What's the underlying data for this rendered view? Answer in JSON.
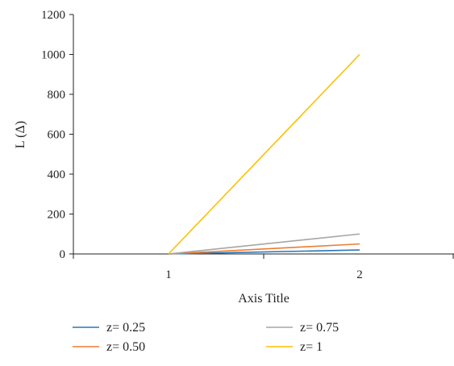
{
  "chart_data": {
    "type": "line",
    "xlabel": "Axis Title",
    "ylabel": "L (Δ)",
    "categories": [
      "1",
      "2"
    ],
    "ylim": [
      0,
      1200
    ],
    "yticks": [
      0,
      200,
      400,
      600,
      800,
      1000,
      1200
    ],
    "grid": false,
    "legend_position": "bottom",
    "series": [
      {
        "name": "z= 0.25",
        "color": "#2e75b6",
        "values": [
          0,
          20
        ]
      },
      {
        "name": "z= 0.50",
        "color": "#ed7d31",
        "values": [
          0,
          50
        ]
      },
      {
        "name": "z= 0.75",
        "color": "#a5a5a5",
        "values": [
          0,
          100
        ]
      },
      {
        "name": "z= 1",
        "color": "#ffc000",
        "values": [
          0,
          1000
        ]
      }
    ]
  }
}
